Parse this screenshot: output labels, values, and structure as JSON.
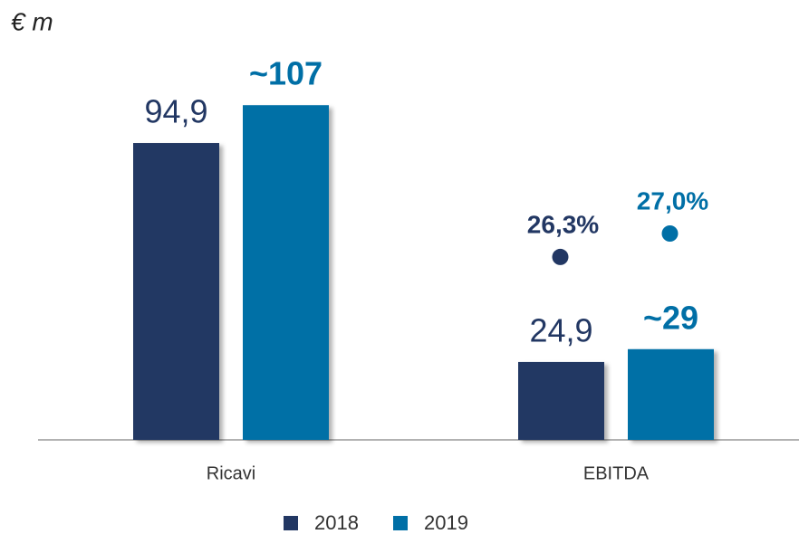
{
  "chart_data": {
    "type": "bar",
    "title": "€ m",
    "categories": [
      "Ricavi",
      "EBITDA"
    ],
    "series": [
      {
        "name": "2018",
        "color": "#223763",
        "values": [
          94.9,
          24.9
        ],
        "value_labels": [
          "94,9",
          "24,9"
        ]
      },
      {
        "name": "2019",
        "color": "#006fa6",
        "values": [
          107,
          29
        ],
        "value_labels": [
          "~107",
          "~29"
        ]
      }
    ],
    "margins": {
      "values": [
        26.3,
        27.0
      ],
      "value_labels": [
        "26,3%",
        "27,0%"
      ]
    },
    "legend": "bottom"
  }
}
